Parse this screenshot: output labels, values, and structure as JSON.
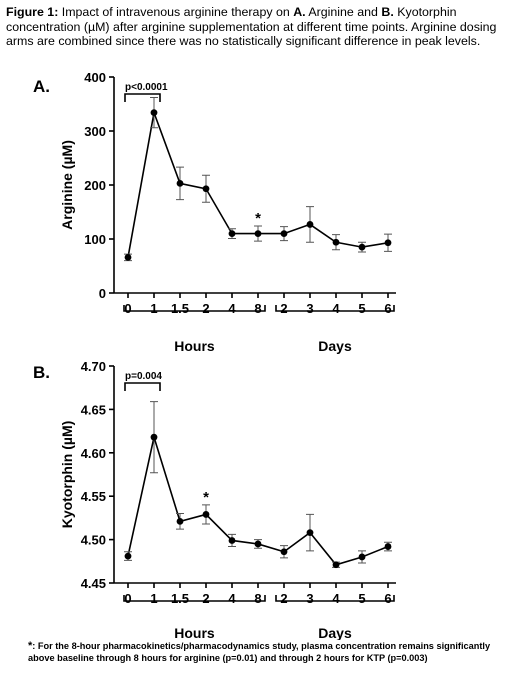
{
  "caption": {
    "figure_label": "Figure 1:",
    "text_1": " Impact of intravenous arginine therapy on ",
    "panel_a": "A.",
    "text_2": " Arginine and ",
    "panel_b": "B.",
    "text_3": " Kyotorphin concentration (µM) after arginine supplementation at different time points. Arginine dosing arms are combined since there was no statistically significant difference in peak levels."
  },
  "footnote": {
    "marker": "*",
    "text": ": For the 8-hour pharmacokinetics/pharmacodynamics study, plasma concentration remains significantly above baseline through 8 hours for arginine (p=0.01) and through 2 hours for KTP (p=0.003)"
  },
  "chart_data": [
    {
      "type": "line",
      "panel_label": "A.",
      "title": "",
      "ylabel": "Arginine (µM)",
      "ylim": [
        0,
        400
      ],
      "yticks": [
        0,
        100,
        200,
        300,
        400
      ],
      "categories": [
        "0",
        "1",
        "1.5",
        "2",
        "4",
        "8",
        "2",
        "3",
        "4",
        "5",
        "6"
      ],
      "groups": [
        {
          "label": "Hours",
          "categories": [
            "0",
            "1",
            "1.5",
            "2",
            "4",
            "8"
          ]
        },
        {
          "label": "Days",
          "categories": [
            "2",
            "3",
            "4",
            "5",
            "6"
          ]
        }
      ],
      "series": [
        {
          "values": [
            66,
            334,
            203,
            193,
            110,
            110,
            110,
            127,
            94,
            85,
            93
          ],
          "error": [
            6,
            28,
            30,
            25,
            9,
            14,
            13,
            33,
            14,
            9,
            16
          ]
        }
      ],
      "annotations": [
        {
          "text": "p<0.0001",
          "bracket_from": "0",
          "bracket_to": "1"
        },
        {
          "text": "*",
          "at_category_index": 5
        }
      ],
      "color": "#000000"
    },
    {
      "type": "line",
      "panel_label": "B.",
      "title": "",
      "ylabel": "Kyotorphin (µM)",
      "ylim": [
        4.45,
        4.7
      ],
      "yticks": [
        "4.45",
        "4.50",
        "4.55",
        "4.60",
        "4.65",
        "4.70"
      ],
      "categories": [
        "0",
        "1",
        "1.5",
        "2",
        "4",
        "8",
        "2",
        "3",
        "4",
        "5",
        "6"
      ],
      "groups": [
        {
          "label": "Hours",
          "categories": [
            "0",
            "1",
            "1.5",
            "2",
            "4",
            "8"
          ]
        },
        {
          "label": "Days",
          "categories": [
            "2",
            "3",
            "4",
            "5",
            "6"
          ]
        }
      ],
      "series": [
        {
          "values": [
            4.481,
            4.618,
            4.521,
            4.529,
            4.499,
            4.495,
            4.486,
            4.508,
            4.471,
            4.48,
            4.492
          ],
          "error": [
            0.005,
            0.041,
            0.009,
            0.011,
            0.007,
            0.005,
            0.007,
            0.021,
            0.003,
            0.007,
            0.005
          ]
        }
      ],
      "annotations": [
        {
          "text": "p=0.004",
          "bracket_from": "0",
          "bracket_to": "1"
        },
        {
          "text": "*",
          "at_category_index": 3
        }
      ],
      "color": "#000000"
    }
  ]
}
